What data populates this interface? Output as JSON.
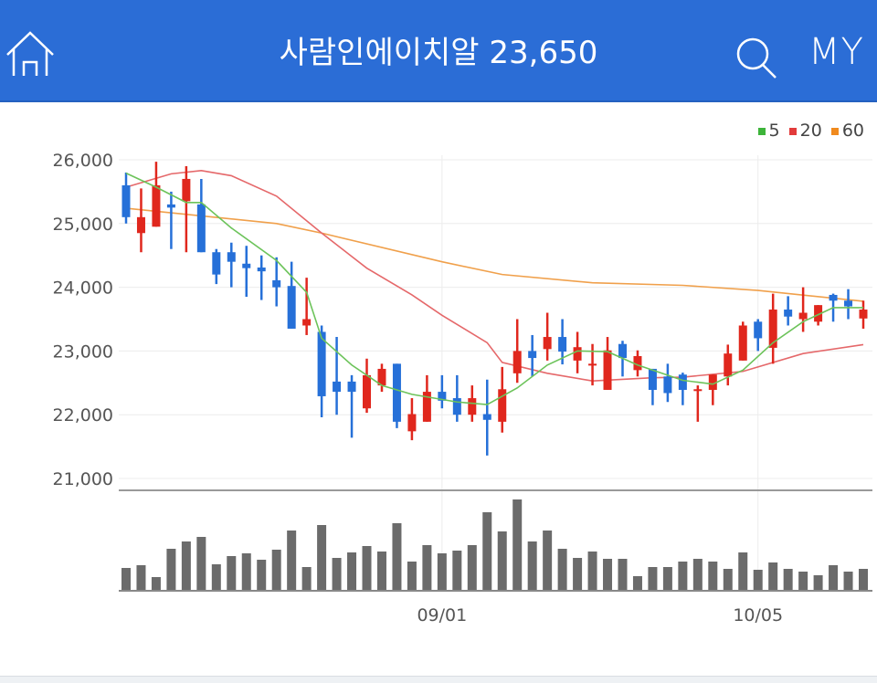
{
  "header": {
    "title": "사람인에이치알 23,650",
    "my_label": "MY",
    "icons": {
      "home": "home-icon",
      "search": "search-icon"
    },
    "background": "#2b6dd6"
  },
  "chart_data": {
    "type": "candlestick",
    "colors": {
      "up": "#e0271d",
      "down": "#2670d8",
      "ma5": "#6cc35a",
      "ma20": "#e5686a",
      "ma60": "#f0a04b",
      "volume": "#6b6b6b"
    },
    "legend": [
      {
        "name": "5",
        "color": "#3db43a"
      },
      {
        "name": "20",
        "color": "#e23b3b"
      },
      {
        "name": "60",
        "color": "#f08a1e"
      }
    ],
    "legend_position": "top-right",
    "ylim": [
      21000,
      26000
    ],
    "yticks": [
      "26,000",
      "25,000",
      "24,000",
      "23,000",
      "22,000",
      "21,000"
    ],
    "ytick_values": [
      26000,
      25000,
      24000,
      23000,
      22000,
      21000
    ],
    "xticks": [
      {
        "index": 21,
        "label": "09/01"
      },
      {
        "index": 42,
        "label": "10/05"
      }
    ],
    "grid": true,
    "candles": [
      [
        25600,
        25800,
        25000,
        25100
      ],
      [
        24850,
        25550,
        24550,
        25100
      ],
      [
        24950,
        25970,
        24950,
        25600
      ],
      [
        25300,
        25500,
        24600,
        25250
      ],
      [
        25350,
        25900,
        24550,
        25700
      ],
      [
        25300,
        25700,
        24550,
        24550
      ],
      [
        24550,
        24600,
        24050,
        24200
      ],
      [
        24550,
        24700,
        24000,
        24400
      ],
      [
        24370,
        24650,
        23850,
        24300
      ],
      [
        24310,
        24500,
        23800,
        24250
      ],
      [
        24110,
        24470,
        23700,
        24000
      ],
      [
        24020,
        24400,
        23350,
        23350
      ],
      [
        23400,
        24150,
        23250,
        23500
      ],
      [
        23300,
        23400,
        21960,
        22290
      ],
      [
        22520,
        23220,
        22000,
        22360
      ],
      [
        22520,
        22620,
        21640,
        22360
      ],
      [
        22100,
        22880,
        22030,
        22620
      ],
      [
        22460,
        22800,
        22360,
        22720
      ],
      [
        22800,
        22800,
        21790,
        21890
      ],
      [
        21740,
        22260,
        21600,
        22010
      ],
      [
        21890,
        22620,
        21890,
        22360
      ],
      [
        22360,
        22620,
        22100,
        22220
      ],
      [
        22260,
        22620,
        21890,
        22000
      ],
      [
        22000,
        22460,
        21890,
        22260
      ],
      [
        22010,
        22550,
        21360,
        21920
      ],
      [
        21890,
        22750,
        21720,
        22400
      ],
      [
        22650,
        23500,
        22500,
        23000
      ],
      [
        23000,
        23250,
        22600,
        22890
      ],
      [
        23030,
        23600,
        22850,
        23220
      ],
      [
        23220,
        23500,
        22790,
        22990
      ],
      [
        22850,
        23300,
        22650,
        23060
      ],
      [
        22800,
        23110,
        22460,
        22800
      ],
      [
        22390,
        23220,
        22390,
        23010
      ],
      [
        23110,
        23160,
        22600,
        22890
      ],
      [
        22700,
        23010,
        22600,
        22920
      ],
      [
        22720,
        22720,
        22150,
        22390
      ],
      [
        22600,
        22800,
        22200,
        22340
      ],
      [
        22630,
        22660,
        22150,
        22390
      ],
      [
        22400,
        22460,
        21890,
        22400
      ],
      [
        22390,
        22630,
        22150,
        22630
      ],
      [
        22600,
        23100,
        22460,
        22960
      ],
      [
        22850,
        23460,
        22850,
        23400
      ],
      [
        23460,
        23500,
        23000,
        23200
      ],
      [
        23050,
        23900,
        22800,
        23650
      ],
      [
        23650,
        23860,
        23400,
        23540
      ],
      [
        23500,
        24000,
        23300,
        23600
      ],
      [
        23460,
        23720,
        23400,
        23720
      ],
      [
        23880,
        23900,
        23460,
        23790
      ],
      [
        23790,
        23970,
        23500,
        23700
      ],
      [
        23510,
        23790,
        23350,
        23650
      ]
    ],
    "candle_fields": [
      "open",
      "high",
      "low",
      "close"
    ],
    "ma5": [
      [
        0,
        25790
      ],
      [
        2,
        25570
      ],
      [
        4,
        25330
      ],
      [
        5,
        25330
      ],
      [
        7,
        24930
      ],
      [
        10,
        24420
      ],
      [
        12,
        23920
      ],
      [
        13,
        23200
      ],
      [
        15,
        22780
      ],
      [
        17,
        22460
      ],
      [
        19,
        22320
      ],
      [
        22,
        22200
      ],
      [
        24,
        22160
      ],
      [
        26,
        22420
      ],
      [
        28,
        22780
      ],
      [
        30,
        23000
      ],
      [
        32,
        22990
      ],
      [
        34,
        22780
      ],
      [
        37,
        22540
      ],
      [
        39,
        22480
      ],
      [
        41,
        22700
      ],
      [
        43,
        23130
      ],
      [
        45,
        23460
      ],
      [
        47,
        23680
      ],
      [
        49,
        23680
      ]
    ],
    "ma20": [
      [
        0,
        25570
      ],
      [
        3,
        25780
      ],
      [
        5,
        25830
      ],
      [
        7,
        25750
      ],
      [
        10,
        25430
      ],
      [
        13,
        24850
      ],
      [
        16,
        24300
      ],
      [
        19,
        23880
      ],
      [
        21,
        23560
      ],
      [
        24,
        23130
      ],
      [
        25,
        22820
      ],
      [
        28,
        22650
      ],
      [
        31,
        22530
      ],
      [
        35,
        22580
      ],
      [
        37,
        22590
      ],
      [
        41,
        22680
      ],
      [
        45,
        22960
      ],
      [
        49,
        23100
      ]
    ],
    "ma60": [
      [
        0,
        25240
      ],
      [
        10,
        25000
      ],
      [
        13,
        24850
      ],
      [
        21,
        24400
      ],
      [
        25,
        24200
      ],
      [
        31,
        24070
      ],
      [
        37,
        24030
      ],
      [
        42,
        23950
      ],
      [
        49,
        23780
      ]
    ],
    "volume": [
      25,
      28,
      15,
      46,
      54,
      59,
      29,
      38,
      41,
      34,
      45,
      66,
      26,
      72,
      36,
      42,
      49,
      43,
      74,
      32,
      50,
      41,
      44,
      50,
      86,
      65,
      100,
      54,
      66,
      46,
      36,
      43,
      35,
      35,
      16,
      26,
      26,
      32,
      35,
      32,
      24,
      42,
      23,
      31,
      24,
      21,
      17,
      28,
      21,
      24
    ]
  }
}
